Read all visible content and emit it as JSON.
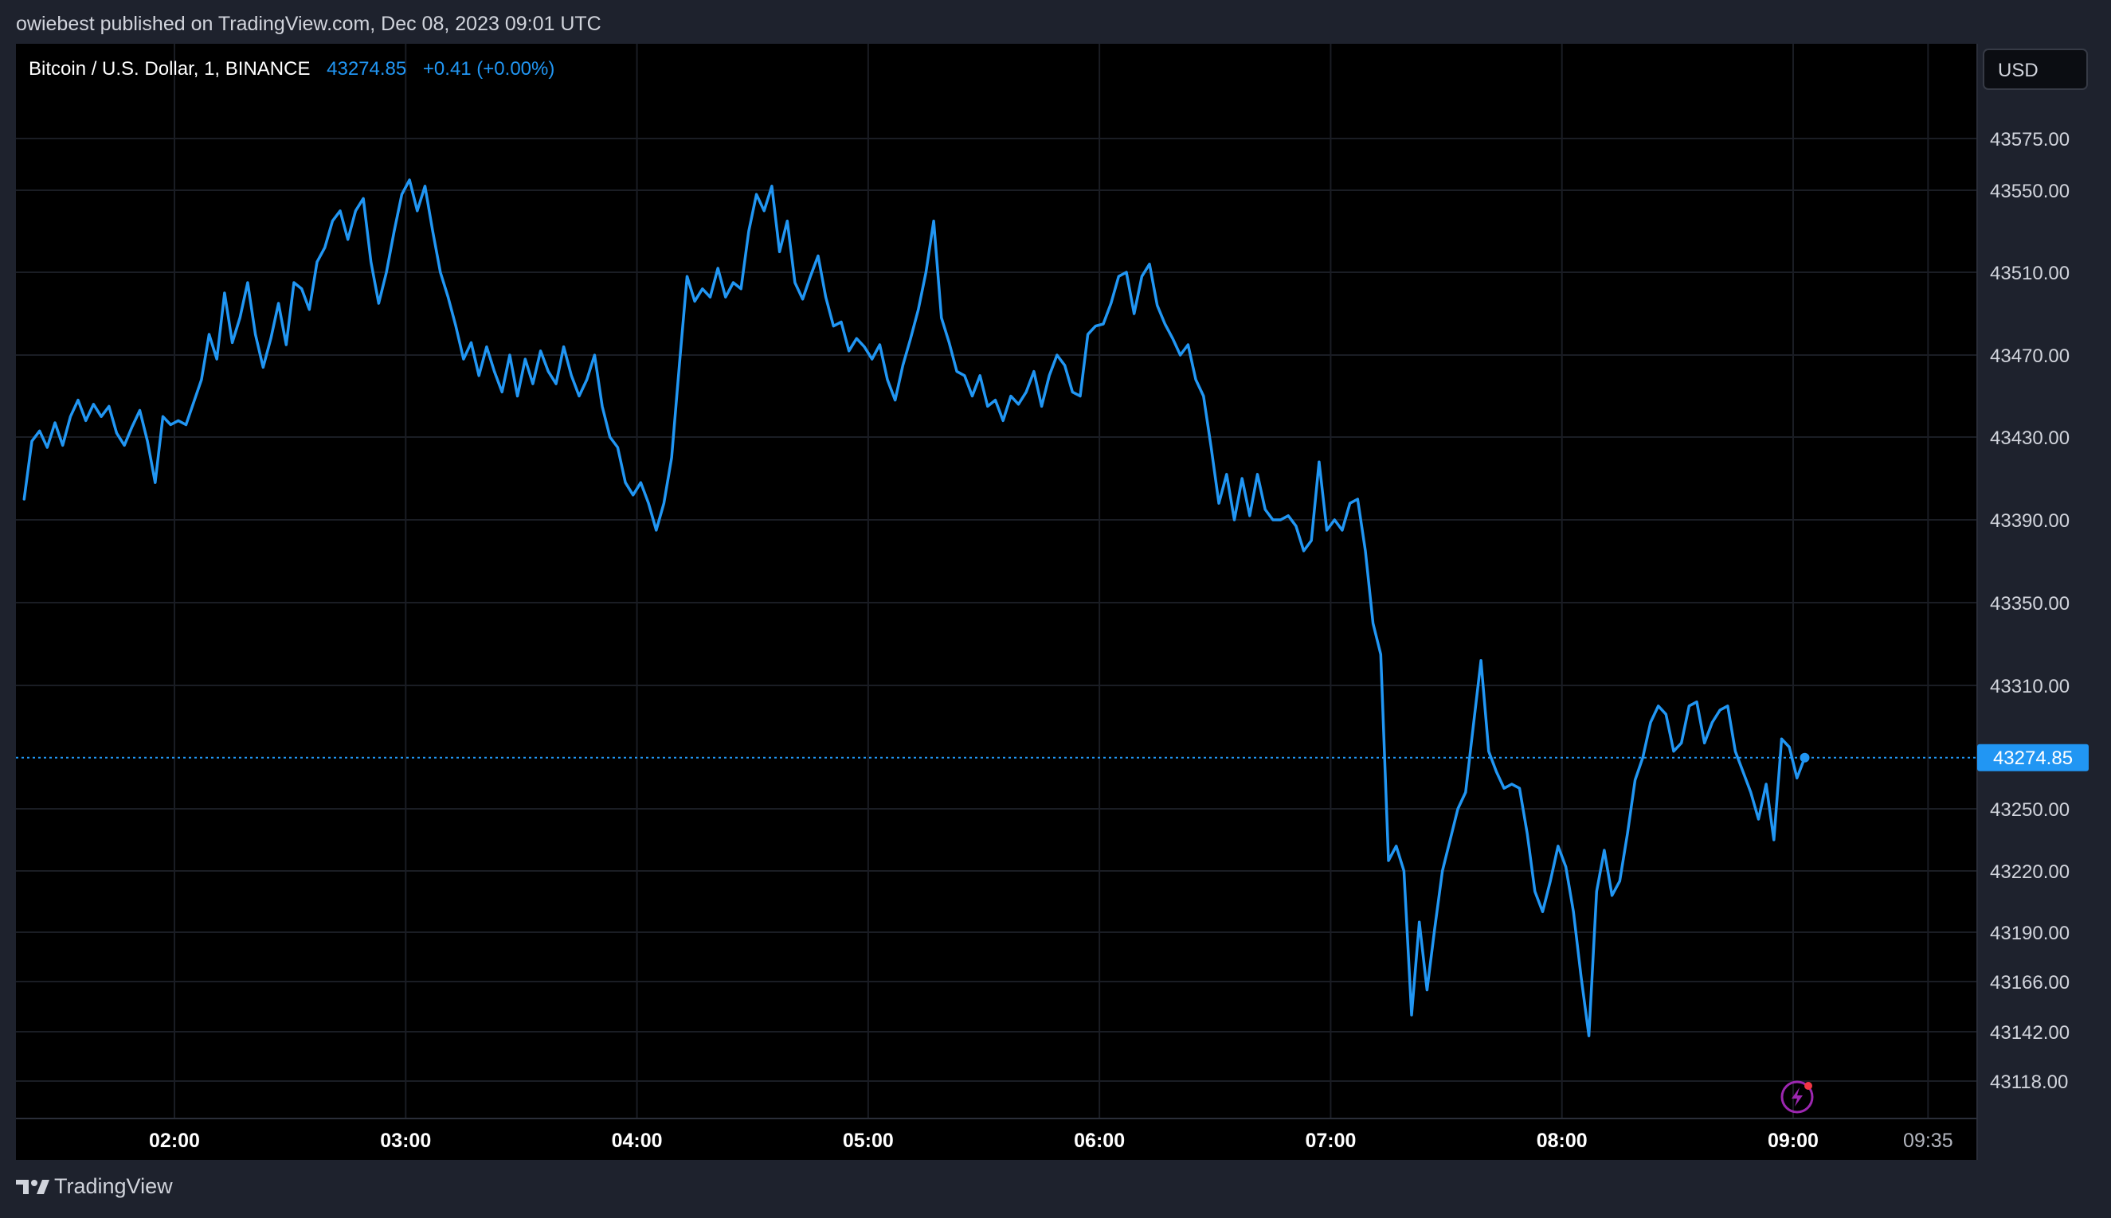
{
  "header": {
    "publish_text": "owiebest published on TradingView.com, Dec 08, 2023 09:01 UTC"
  },
  "legend": {
    "symbol": "Bitcoin / U.S. Dollar, 1, BINANCE",
    "price": "43274.85",
    "change": "+0.41 (+0.00%)"
  },
  "currency_button": "USD",
  "last_price_label": "43274.85",
  "footer": {
    "brand": "TradingView"
  },
  "colors": {
    "background": "#000000",
    "frame": "#1e222d",
    "series": "#2196f3",
    "grid": "#1a1d24",
    "text": "#d1d4dc"
  },
  "chart_data": {
    "type": "line",
    "title": "Bitcoin / U.S. Dollar, 1, BINANCE",
    "y_ticks": [
      "43575.00",
      "43550.00",
      "43510.00",
      "43470.00",
      "43430.00",
      "43390.00",
      "43350.00",
      "43310.00",
      "43250.00",
      "43220.00",
      "43190.00",
      "43166.00",
      "43142.00",
      "43118.00"
    ],
    "x_ticks": [
      "02:00",
      "03:00",
      "04:00",
      "05:00",
      "06:00",
      "07:00",
      "08:00",
      "09:00",
      "09:35"
    ],
    "last_price": 43274.85,
    "grid": true,
    "series": [
      {
        "points": [
          [
            "01:21",
            43400
          ],
          [
            "01:23",
            43428
          ],
          [
            "01:25",
            43433
          ],
          [
            "01:27",
            43425
          ],
          [
            "01:29",
            43437
          ],
          [
            "01:31",
            43426
          ],
          [
            "01:33",
            43440
          ],
          [
            "01:35",
            43448
          ],
          [
            "01:37",
            43438
          ],
          [
            "01:39",
            43446
          ],
          [
            "01:41",
            43440
          ],
          [
            "01:43",
            43445
          ],
          [
            "01:45",
            43432
          ],
          [
            "01:47",
            43426
          ],
          [
            "01:49",
            43435
          ],
          [
            "01:51",
            43443
          ],
          [
            "01:53",
            43428
          ],
          [
            "01:55",
            43408
          ],
          [
            "01:57",
            43440
          ],
          [
            "01:59",
            43436
          ],
          [
            "02:01",
            43438
          ],
          [
            "02:03",
            43436
          ],
          [
            "02:05",
            43447
          ],
          [
            "02:07",
            43458
          ],
          [
            "02:09",
            43480
          ],
          [
            "02:11",
            43468
          ],
          [
            "02:13",
            43500
          ],
          [
            "02:15",
            43476
          ],
          [
            "02:17",
            43488
          ],
          [
            "02:19",
            43505
          ],
          [
            "02:21",
            43480
          ],
          [
            "02:23",
            43464
          ],
          [
            "02:25",
            43478
          ],
          [
            "02:27",
            43495
          ],
          [
            "02:29",
            43475
          ],
          [
            "02:31",
            43505
          ],
          [
            "02:33",
            43502
          ],
          [
            "02:35",
            43492
          ],
          [
            "02:37",
            43515
          ],
          [
            "02:39",
            43522
          ],
          [
            "02:41",
            43535
          ],
          [
            "02:43",
            43540
          ],
          [
            "02:45",
            43526
          ],
          [
            "02:47",
            43540
          ],
          [
            "02:49",
            43546
          ],
          [
            "02:51",
            43515
          ],
          [
            "02:53",
            43495
          ],
          [
            "02:55",
            43510
          ],
          [
            "02:57",
            43530
          ],
          [
            "02:59",
            43548
          ],
          [
            "03:01",
            43555
          ],
          [
            "03:03",
            43540
          ],
          [
            "03:05",
            43552
          ],
          [
            "03:07",
            43530
          ],
          [
            "03:09",
            43510
          ],
          [
            "03:11",
            43498
          ],
          [
            "03:13",
            43484
          ],
          [
            "03:15",
            43468
          ],
          [
            "03:17",
            43476
          ],
          [
            "03:19",
            43460
          ],
          [
            "03:21",
            43474
          ],
          [
            "03:23",
            43462
          ],
          [
            "03:25",
            43452
          ],
          [
            "03:27",
            43470
          ],
          [
            "03:29",
            43450
          ],
          [
            "03:31",
            43468
          ],
          [
            "03:33",
            43456
          ],
          [
            "03:35",
            43472
          ],
          [
            "03:37",
            43462
          ],
          [
            "03:39",
            43456
          ],
          [
            "03:41",
            43474
          ],
          [
            "03:43",
            43460
          ],
          [
            "03:45",
            43450
          ],
          [
            "03:47",
            43458
          ],
          [
            "03:49",
            43470
          ],
          [
            "03:51",
            43445
          ],
          [
            "03:53",
            43430
          ],
          [
            "03:55",
            43425
          ],
          [
            "03:57",
            43408
          ],
          [
            "03:59",
            43402
          ],
          [
            "04:01",
            43408
          ],
          [
            "04:03",
            43398
          ],
          [
            "04:05",
            43385
          ],
          [
            "04:07",
            43398
          ],
          [
            "04:09",
            43420
          ],
          [
            "04:11",
            43465
          ],
          [
            "04:13",
            43508
          ],
          [
            "04:15",
            43496
          ],
          [
            "04:17",
            43502
          ],
          [
            "04:19",
            43498
          ],
          [
            "04:21",
            43512
          ],
          [
            "04:23",
            43498
          ],
          [
            "04:25",
            43505
          ],
          [
            "04:27",
            43502
          ],
          [
            "04:29",
            43530
          ],
          [
            "04:31",
            43548
          ],
          [
            "04:33",
            43540
          ],
          [
            "04:35",
            43552
          ],
          [
            "04:37",
            43520
          ],
          [
            "04:39",
            43535
          ],
          [
            "04:41",
            43505
          ],
          [
            "04:43",
            43497
          ],
          [
            "04:45",
            43508
          ],
          [
            "04:47",
            43518
          ],
          [
            "04:49",
            43498
          ],
          [
            "04:51",
            43484
          ],
          [
            "04:53",
            43486
          ],
          [
            "04:55",
            43472
          ],
          [
            "04:57",
            43478
          ],
          [
            "04:59",
            43474
          ],
          [
            "05:01",
            43468
          ],
          [
            "05:03",
            43475
          ],
          [
            "05:05",
            43458
          ],
          [
            "05:07",
            43448
          ],
          [
            "05:09",
            43465
          ],
          [
            "05:11",
            43478
          ],
          [
            "05:13",
            43492
          ],
          [
            "05:15",
            43510
          ],
          [
            "05:17",
            43535
          ],
          [
            "05:19",
            43488
          ],
          [
            "05:21",
            43476
          ],
          [
            "05:23",
            43462
          ],
          [
            "05:25",
            43460
          ],
          [
            "05:27",
            43450
          ],
          [
            "05:29",
            43460
          ],
          [
            "05:31",
            43445
          ],
          [
            "05:33",
            43448
          ],
          [
            "05:35",
            43438
          ],
          [
            "05:37",
            43450
          ],
          [
            "05:39",
            43446
          ],
          [
            "05:41",
            43452
          ],
          [
            "05:43",
            43462
          ],
          [
            "05:45",
            43445
          ],
          [
            "05:47",
            43460
          ],
          [
            "05:49",
            43470
          ],
          [
            "05:51",
            43465
          ],
          [
            "05:53",
            43452
          ],
          [
            "05:55",
            43450
          ],
          [
            "05:57",
            43480
          ],
          [
            "05:59",
            43484
          ],
          [
            "06:01",
            43485
          ],
          [
            "06:03",
            43495
          ],
          [
            "06:05",
            43508
          ],
          [
            "06:07",
            43510
          ],
          [
            "06:09",
            43490
          ],
          [
            "06:11",
            43508
          ],
          [
            "06:13",
            43514
          ],
          [
            "06:15",
            43494
          ],
          [
            "06:17",
            43485
          ],
          [
            "06:19",
            43478
          ],
          [
            "06:21",
            43470
          ],
          [
            "06:23",
            43475
          ],
          [
            "06:25",
            43458
          ],
          [
            "06:27",
            43450
          ],
          [
            "06:29",
            43425
          ],
          [
            "06:31",
            43398
          ],
          [
            "06:33",
            43412
          ],
          [
            "06:35",
            43390
          ],
          [
            "06:37",
            43410
          ],
          [
            "06:39",
            43392
          ],
          [
            "06:41",
            43412
          ],
          [
            "06:43",
            43395
          ],
          [
            "06:45",
            43390
          ],
          [
            "06:47",
            43390
          ],
          [
            "06:49",
            43392
          ],
          [
            "06:51",
            43387
          ],
          [
            "06:53",
            43375
          ],
          [
            "06:55",
            43380
          ],
          [
            "06:57",
            43418
          ],
          [
            "06:59",
            43385
          ],
          [
            "07:01",
            43390
          ],
          [
            "07:03",
            43385
          ],
          [
            "07:05",
            43398
          ],
          [
            "07:07",
            43400
          ],
          [
            "07:09",
            43375
          ],
          [
            "07:11",
            43340
          ],
          [
            "07:13",
            43325
          ],
          [
            "07:15",
            43225
          ],
          [
            "07:17",
            43232
          ],
          [
            "07:19",
            43220
          ],
          [
            "07:21",
            43150
          ],
          [
            "07:23",
            43195
          ],
          [
            "07:25",
            43162
          ],
          [
            "07:27",
            43192
          ],
          [
            "07:29",
            43220
          ],
          [
            "07:31",
            43235
          ],
          [
            "07:33",
            43250
          ],
          [
            "07:35",
            43258
          ],
          [
            "07:37",
            43290
          ],
          [
            "07:39",
            43322
          ],
          [
            "07:41",
            43278
          ],
          [
            "07:43",
            43268
          ],
          [
            "07:45",
            43260
          ],
          [
            "07:47",
            43262
          ],
          [
            "07:49",
            43260
          ],
          [
            "07:51",
            43238
          ],
          [
            "07:53",
            43210
          ],
          [
            "07:55",
            43200
          ],
          [
            "07:57",
            43215
          ],
          [
            "07:59",
            43232
          ],
          [
            "08:01",
            43222
          ],
          [
            "08:03",
            43200
          ],
          [
            "08:05",
            43168
          ],
          [
            "08:07",
            43140
          ],
          [
            "08:09",
            43210
          ],
          [
            "08:11",
            43230
          ],
          [
            "08:13",
            43208
          ],
          [
            "08:15",
            43215
          ],
          [
            "08:17",
            43238
          ],
          [
            "08:19",
            43264
          ],
          [
            "08:21",
            43275
          ],
          [
            "08:23",
            43292
          ],
          [
            "08:25",
            43300
          ],
          [
            "08:27",
            43296
          ],
          [
            "08:29",
            43278
          ],
          [
            "08:31",
            43282
          ],
          [
            "08:33",
            43300
          ],
          [
            "08:35",
            43302
          ],
          [
            "08:37",
            43282
          ],
          [
            "08:39",
            43292
          ],
          [
            "08:41",
            43298
          ],
          [
            "08:43",
            43300
          ],
          [
            "08:45",
            43278
          ],
          [
            "08:47",
            43268
          ],
          [
            "08:49",
            43258
          ],
          [
            "08:51",
            43245
          ],
          [
            "08:53",
            43262
          ],
          [
            "08:55",
            43235
          ],
          [
            "08:57",
            43284
          ],
          [
            "08:59",
            43280
          ],
          [
            "09:01",
            43265
          ],
          [
            "09:03",
            43274.85
          ]
        ]
      }
    ]
  }
}
